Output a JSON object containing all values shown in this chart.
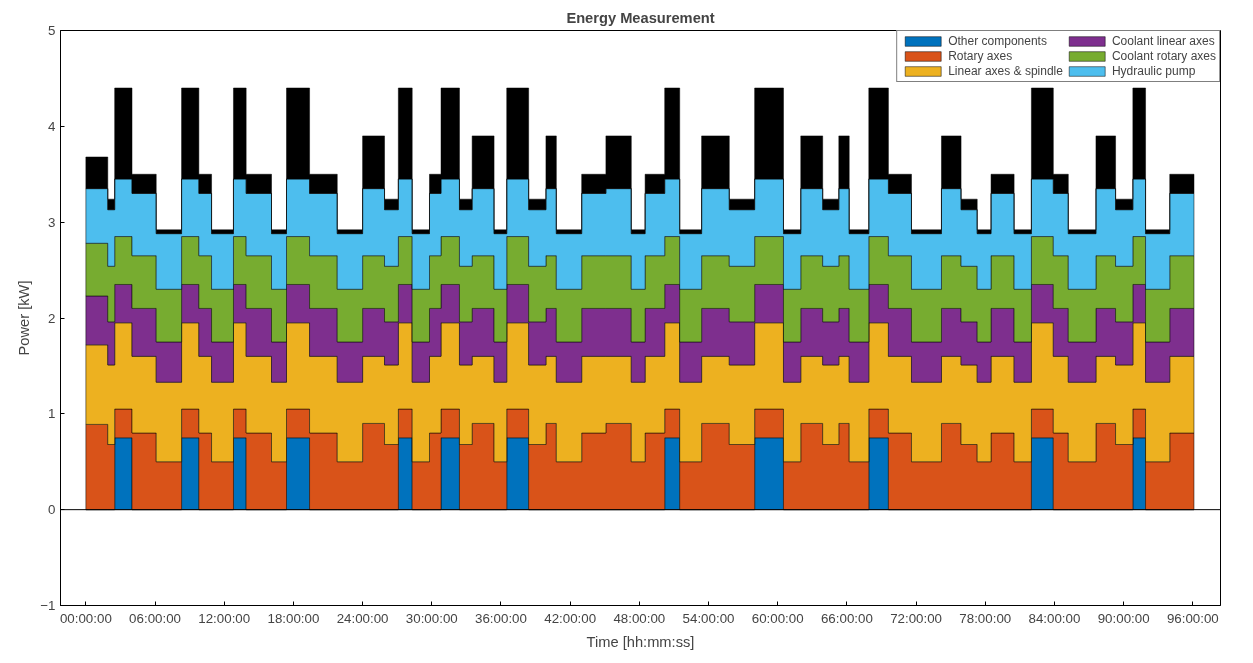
{
  "chart_data": {
    "type": "area",
    "stacked": true,
    "title": "Energy Measurement",
    "xlabel": "Time [hh:mm:ss]",
    "ylabel": "Power [kW]",
    "x": [
      0,
      1.9,
      1.9,
      2.5,
      2.5,
      4.0,
      4.0,
      6.1,
      6.1,
      8.3,
      8.3,
      9.8,
      9.8,
      10.9,
      10.9,
      12.8,
      12.8,
      13.9,
      13.9,
      16.1,
      16.1,
      17.4,
      17.4,
      19.4,
      19.4,
      21.8,
      21.8,
      24.0,
      24.0,
      25.9,
      25.9,
      27.1,
      27.1,
      28.3,
      28.3,
      29.8,
      29.8,
      30.8,
      30.8,
      32.4,
      32.4,
      33.5,
      33.5,
      35.4,
      35.4,
      36.5,
      36.5,
      38.4,
      38.4,
      39.9,
      39.9,
      40.8,
      40.8,
      43.0,
      43.0,
      45.1,
      45.1,
      47.3,
      47.3,
      48.5,
      48.5,
      50.2,
      50.2,
      51.5,
      51.5,
      53.4,
      53.4,
      55.8,
      55.8,
      58.0,
      58.0,
      60.5,
      60.5,
      62.0,
      62.0,
      63.9,
      63.9,
      65.3,
      65.3,
      66.2,
      66.2,
      67.9,
      67.9,
      69.6,
      69.6,
      71.6,
      71.6,
      74.2,
      74.2,
      75.9,
      75.9,
      77.3,
      77.3,
      78.5,
      78.5,
      80.5,
      80.5,
      82.0,
      82.0,
      83.9,
      83.9,
      85.2,
      85.2,
      87.6,
      87.6,
      89.3,
      89.3,
      90.8,
      90.8,
      91.9,
      91.9,
      94.0,
      94.0,
      96.1
    ],
    "series": [
      {
        "name": "Other components",
        "color": "#0072bd",
        "values": [
          0,
          0,
          0,
          0,
          0.75,
          0.75,
          0,
          0,
          0,
          0,
          0.75,
          0.75,
          0,
          0,
          0,
          0,
          0.75,
          0.75,
          0,
          0,
          0,
          0,
          0.75,
          0.75,
          0,
          0,
          0,
          0,
          0,
          0,
          0,
          0,
          0.75,
          0.75,
          0,
          0,
          0,
          0,
          0.75,
          0.75,
          0,
          0,
          0,
          0,
          0,
          0,
          0.75,
          0.75,
          0,
          0,
          0,
          0,
          0,
          0,
          0,
          0,
          0,
          0,
          0,
          0,
          0,
          0,
          0.75,
          0.75,
          0,
          0,
          0,
          0,
          0,
          0,
          0.75,
          0.75,
          0,
          0,
          0,
          0,
          0,
          0,
          0,
          0,
          0,
          0,
          0.75,
          0.75,
          0,
          0,
          0,
          0,
          0,
          0,
          0,
          0,
          0,
          0,
          0,
          0,
          0,
          0,
          0.75,
          0.75,
          0,
          0,
          0,
          0,
          0,
          0,
          0,
          0,
          0.75,
          0.75,
          0,
          0,
          0,
          0
        ]
      },
      {
        "name": "Rotary axes",
        "color": "#d95319",
        "values": [
          0.89,
          0.89,
          0.68,
          0.68,
          0.3,
          0.3,
          0.8,
          0.8,
          0.5,
          0.5,
          0.3,
          0.3,
          0.8,
          0.8,
          0.5,
          0.5,
          0.3,
          0.3,
          0.8,
          0.8,
          0.5,
          0.5,
          0.3,
          0.3,
          0.8,
          0.8,
          0.5,
          0.5,
          0.9,
          0.9,
          0.68,
          0.68,
          0.3,
          0.3,
          0.5,
          0.5,
          0.8,
          0.8,
          0.3,
          0.3,
          0.68,
          0.68,
          0.9,
          0.9,
          0.5,
          0.5,
          0.3,
          0.3,
          0.68,
          0.68,
          0.9,
          0.9,
          0.5,
          0.5,
          0.8,
          0.8,
          0.9,
          0.9,
          0.5,
          0.5,
          0.8,
          0.8,
          0.3,
          0.3,
          0.5,
          0.5,
          0.9,
          0.9,
          0.68,
          0.68,
          0.3,
          0.3,
          0.5,
          0.5,
          0.9,
          0.9,
          0.68,
          0.68,
          0.9,
          0.9,
          0.5,
          0.5,
          0.3,
          0.3,
          0.8,
          0.8,
          0.5,
          0.5,
          0.9,
          0.9,
          0.68,
          0.68,
          0.5,
          0.5,
          0.8,
          0.8,
          0.5,
          0.5,
          0.3,
          0.3,
          0.8,
          0.8,
          0.5,
          0.5,
          0.9,
          0.9,
          0.68,
          0.68,
          0.3,
          0.3,
          0.5,
          0.5,
          0.8,
          0.8
        ]
      },
      {
        "name": "Linear axes & spindle",
        "color": "#edb120",
        "values": [
          0.83,
          0.83,
          0.83,
          0.83,
          0.9,
          0.9,
          0.8,
          0.8,
          0.83,
          0.83,
          0.9,
          0.9,
          0.8,
          0.8,
          0.83,
          0.83,
          0.9,
          0.9,
          0.8,
          0.8,
          0.83,
          0.83,
          0.9,
          0.9,
          0.8,
          0.8,
          0.83,
          0.83,
          0.7,
          0.7,
          0.83,
          0.83,
          0.9,
          0.9,
          0.83,
          0.83,
          0.8,
          0.8,
          0.9,
          0.9,
          0.83,
          0.83,
          0.7,
          0.7,
          0.83,
          0.83,
          0.9,
          0.9,
          0.83,
          0.83,
          0.7,
          0.7,
          0.83,
          0.83,
          0.8,
          0.8,
          0.7,
          0.7,
          0.83,
          0.83,
          0.8,
          0.8,
          0.9,
          0.9,
          0.83,
          0.83,
          0.7,
          0.7,
          0.83,
          0.83,
          0.9,
          0.9,
          0.83,
          0.83,
          0.7,
          0.7,
          0.83,
          0.83,
          0.7,
          0.7,
          0.83,
          0.83,
          0.9,
          0.9,
          0.8,
          0.8,
          0.83,
          0.83,
          0.7,
          0.7,
          0.83,
          0.83,
          0.83,
          0.83,
          0.8,
          0.8,
          0.83,
          0.83,
          0.9,
          0.9,
          0.8,
          0.8,
          0.83,
          0.83,
          0.7,
          0.7,
          0.83,
          0.83,
          0.9,
          0.9,
          0.83,
          0.83,
          0.8,
          0.8
        ]
      },
      {
        "name": "Coolant linear axes",
        "color": "#7e2f8e",
        "values": [
          0.51,
          0.51,
          0.45,
          0.45,
          0.4,
          0.4,
          0.5,
          0.5,
          0.42,
          0.42,
          0.4,
          0.4,
          0.5,
          0.5,
          0.42,
          0.42,
          0.4,
          0.4,
          0.5,
          0.5,
          0.42,
          0.42,
          0.4,
          0.4,
          0.5,
          0.5,
          0.42,
          0.42,
          0.5,
          0.5,
          0.45,
          0.45,
          0.4,
          0.4,
          0.42,
          0.42,
          0.5,
          0.5,
          0.4,
          0.4,
          0.45,
          0.45,
          0.5,
          0.5,
          0.42,
          0.42,
          0.4,
          0.4,
          0.45,
          0.45,
          0.5,
          0.5,
          0.42,
          0.42,
          0.5,
          0.5,
          0.5,
          0.5,
          0.42,
          0.42,
          0.5,
          0.5,
          0.4,
          0.4,
          0.42,
          0.42,
          0.5,
          0.5,
          0.45,
          0.45,
          0.4,
          0.4,
          0.42,
          0.42,
          0.5,
          0.5,
          0.45,
          0.45,
          0.5,
          0.5,
          0.42,
          0.42,
          0.4,
          0.4,
          0.5,
          0.5,
          0.42,
          0.42,
          0.5,
          0.5,
          0.45,
          0.45,
          0.42,
          0.42,
          0.5,
          0.5,
          0.42,
          0.42,
          0.4,
          0.4,
          0.5,
          0.5,
          0.42,
          0.42,
          0.5,
          0.5,
          0.45,
          0.45,
          0.4,
          0.4,
          0.42,
          0.42,
          0.5,
          0.5
        ]
      },
      {
        "name": "Coolant rotary axes",
        "color": "#77ac30",
        "values": [
          0.55,
          0.55,
          0.58,
          0.58,
          0.5,
          0.5,
          0.55,
          0.55,
          0.55,
          0.55,
          0.5,
          0.5,
          0.55,
          0.55,
          0.55,
          0.55,
          0.5,
          0.5,
          0.55,
          0.55,
          0.55,
          0.55,
          0.5,
          0.5,
          0.55,
          0.55,
          0.55,
          0.55,
          0.55,
          0.55,
          0.58,
          0.58,
          0.5,
          0.5,
          0.55,
          0.55,
          0.55,
          0.55,
          0.5,
          0.5,
          0.58,
          0.58,
          0.55,
          0.55,
          0.55,
          0.55,
          0.5,
          0.5,
          0.58,
          0.58,
          0.55,
          0.55,
          0.55,
          0.55,
          0.55,
          0.55,
          0.55,
          0.55,
          0.55,
          0.55,
          0.55,
          0.55,
          0.5,
          0.5,
          0.55,
          0.55,
          0.55,
          0.55,
          0.58,
          0.58,
          0.5,
          0.5,
          0.55,
          0.55,
          0.55,
          0.55,
          0.58,
          0.58,
          0.55,
          0.55,
          0.55,
          0.55,
          0.5,
          0.5,
          0.55,
          0.55,
          0.55,
          0.55,
          0.55,
          0.55,
          0.58,
          0.58,
          0.55,
          0.55,
          0.55,
          0.55,
          0.55,
          0.55,
          0.5,
          0.5,
          0.55,
          0.55,
          0.55,
          0.55,
          0.55,
          0.55,
          0.58,
          0.58,
          0.5,
          0.5,
          0.55,
          0.55,
          0.55,
          0.55
        ]
      },
      {
        "name": "Hydraulic pump",
        "color": "#4dbeee",
        "values": [
          0.57,
          0.57,
          0.59,
          0.59,
          0.6,
          0.6,
          0.65,
          0.65,
          0.58,
          0.58,
          0.6,
          0.6,
          0.65,
          0.65,
          0.58,
          0.58,
          0.6,
          0.6,
          0.65,
          0.65,
          0.58,
          0.58,
          0.6,
          0.6,
          0.65,
          0.65,
          0.58,
          0.58,
          0.7,
          0.7,
          0.59,
          0.59,
          0.6,
          0.6,
          0.58,
          0.58,
          0.65,
          0.65,
          0.6,
          0.6,
          0.59,
          0.59,
          0.7,
          0.7,
          0.58,
          0.58,
          0.6,
          0.6,
          0.59,
          0.59,
          0.7,
          0.7,
          0.58,
          0.58,
          0.65,
          0.65,
          0.7,
          0.7,
          0.58,
          0.58,
          0.65,
          0.65,
          0.6,
          0.6,
          0.58,
          0.58,
          0.7,
          0.7,
          0.59,
          0.59,
          0.6,
          0.6,
          0.58,
          0.58,
          0.7,
          0.7,
          0.59,
          0.59,
          0.7,
          0.7,
          0.58,
          0.58,
          0.6,
          0.6,
          0.65,
          0.65,
          0.58,
          0.58,
          0.7,
          0.7,
          0.59,
          0.59,
          0.58,
          0.58,
          0.65,
          0.65,
          0.58,
          0.58,
          0.6,
          0.6,
          0.65,
          0.65,
          0.58,
          0.58,
          0.7,
          0.7,
          0.59,
          0.59,
          0.6,
          0.6,
          0.58,
          0.58,
          0.65,
          0.65
        ]
      },
      {
        "color": "#000000",
        "values": [
          0.33,
          0.33,
          0.11,
          0.11,
          0.95,
          0.95,
          0.2,
          0.2,
          0.04,
          0.04,
          0.95,
          0.95,
          0.2,
          0.2,
          0.04,
          0.04,
          0.95,
          0.95,
          0.2,
          0.2,
          0.04,
          0.04,
          0.95,
          0.95,
          0.2,
          0.2,
          0.04,
          0.04,
          0.55,
          0.55,
          0.11,
          0.11,
          0.95,
          0.95,
          0.04,
          0.04,
          0.2,
          0.2,
          0.95,
          0.95,
          0.11,
          0.11,
          0.55,
          0.55,
          0.04,
          0.04,
          0.95,
          0.95,
          0.11,
          0.11,
          0.55,
          0.55,
          0.04,
          0.04,
          0.2,
          0.2,
          0.55,
          0.55,
          0.04,
          0.04,
          0.2,
          0.2,
          0.95,
          0.95,
          0.04,
          0.04,
          0.55,
          0.55,
          0.11,
          0.11,
          0.95,
          0.95,
          0.04,
          0.04,
          0.55,
          0.55,
          0.11,
          0.11,
          0.55,
          0.55,
          0.04,
          0.04,
          0.95,
          0.95,
          0.2,
          0.2,
          0.04,
          0.04,
          0.55,
          0.55,
          0.11,
          0.11,
          0.04,
          0.04,
          0.2,
          0.2,
          0.04,
          0.04,
          0.95,
          0.95,
          0.2,
          0.2,
          0.04,
          0.04,
          0.55,
          0.55,
          0.11,
          0.11,
          0.95,
          0.95,
          0.04,
          0.04,
          0.2,
          0.2
        ]
      }
    ],
    "xlim": [
      -2.2,
      98.4
    ],
    "ylim": [
      -1,
      5
    ],
    "xticks": [
      {
        "value": 0,
        "label": "00:00:00"
      },
      {
        "value": 6,
        "label": "06:00:00"
      },
      {
        "value": 12,
        "label": "12:00:00"
      },
      {
        "value": 18,
        "label": "18:00:00"
      },
      {
        "value": 24,
        "label": "24:00:00"
      },
      {
        "value": 30,
        "label": "30:00:00"
      },
      {
        "value": 36,
        "label": "36:00:00"
      },
      {
        "value": 42,
        "label": "42:00:00"
      },
      {
        "value": 48,
        "label": "48:00:00"
      },
      {
        "value": 54,
        "label": "54:00:00"
      },
      {
        "value": 60,
        "label": "60:00:00"
      },
      {
        "value": 66,
        "label": "66:00:00"
      },
      {
        "value": 72,
        "label": "72:00:00"
      },
      {
        "value": 78,
        "label": "78:00:00"
      },
      {
        "value": 84,
        "label": "84:00:00"
      },
      {
        "value": 90,
        "label": "90:00:00"
      },
      {
        "value": 96,
        "label": "96:00:00"
      }
    ],
    "yticks": [
      -1,
      0,
      1,
      2,
      3,
      4,
      5
    ],
    "ref_lines": [
      {
        "axis": "y",
        "value": 0,
        "color": "#000000"
      }
    ],
    "grid": false,
    "legend": "top right"
  }
}
